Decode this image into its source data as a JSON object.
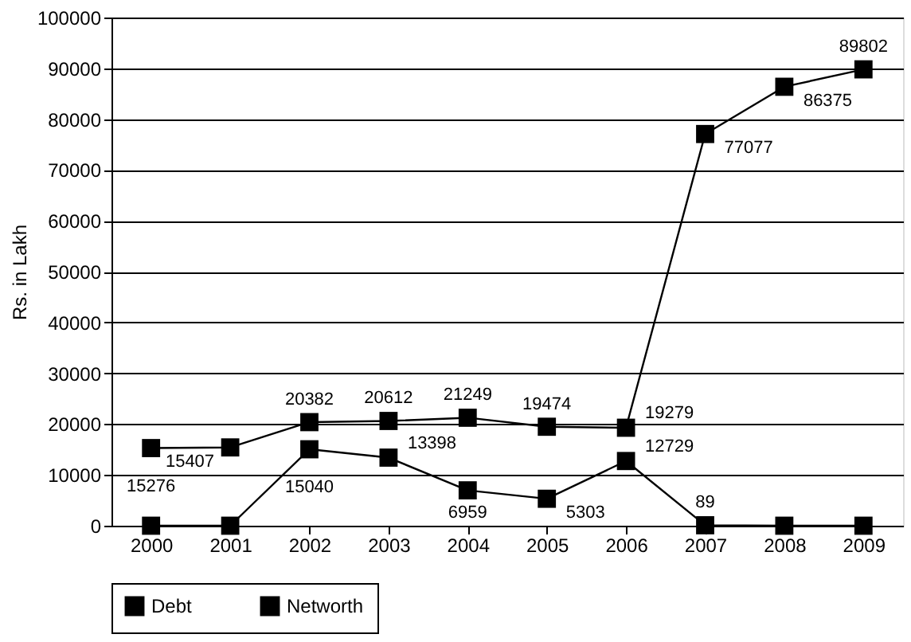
{
  "chart_data": {
    "type": "line",
    "ylabel": "Rs. in Lakh",
    "categories": [
      "2000",
      "2001",
      "2002",
      "2003",
      "2004",
      "2005",
      "2006",
      "2007",
      "2008",
      "2009"
    ],
    "series": [
      {
        "name": "Debt",
        "color": "#000000",
        "values": [
          0,
          0,
          15040,
          13398,
          6959,
          5303,
          12729,
          89,
          0,
          0
        ],
        "value_labels": [
          null,
          null,
          "15040",
          "13398",
          "6959",
          "5303",
          "12729",
          "89",
          null,
          null
        ]
      },
      {
        "name": "Networth",
        "color": "#000000",
        "values": [
          15276,
          15407,
          20382,
          20612,
          21249,
          19474,
          19279,
          77077,
          86375,
          89802
        ],
        "value_labels": [
          "15276",
          "15407",
          "20382",
          "20612",
          "21249",
          "19474",
          "19279",
          "77077",
          "86375",
          "89802"
        ]
      }
    ],
    "ylim": [
      0,
      100000
    ],
    "yticks": [
      0,
      10000,
      20000,
      30000,
      40000,
      50000,
      60000,
      70000,
      80000,
      90000,
      100000
    ],
    "grid": "y",
    "legend": "bottom",
    "marker": "square",
    "line_style": "solid"
  }
}
